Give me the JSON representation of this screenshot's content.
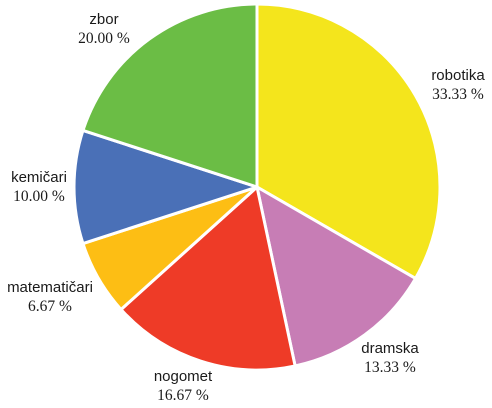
{
  "chart_data": {
    "type": "pie",
    "slices": [
      {
        "category": "robotika",
        "percent_label": "33.33 %",
        "value": 33.33,
        "color": "#F4E51C"
      },
      {
        "category": "dramska",
        "percent_label": "13.33 %",
        "value": 13.33,
        "color": "#C77DB5"
      },
      {
        "category": "nogomet",
        "percent_label": "16.67 %",
        "value": 16.67,
        "color": "#EE3B27"
      },
      {
        "category": "matematičari",
        "percent_label": "6.67 %",
        "value": 6.67,
        "color": "#FDBE14"
      },
      {
        "category": "kemičari",
        "percent_label": "10.00 %",
        "value": 10.0,
        "color": "#4A70B7"
      },
      {
        "category": "zbor",
        "percent_label": "20.00 %",
        "value": 20.0,
        "color": "#6BBD45"
      }
    ],
    "start": "12 o'clock",
    "direction": "clockwise",
    "legend": "none"
  }
}
